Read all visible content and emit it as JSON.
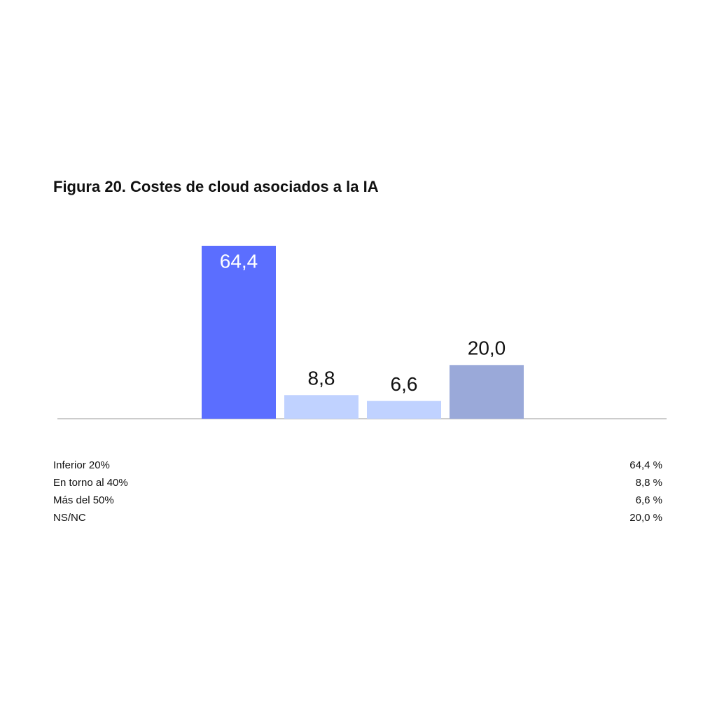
{
  "chart_data": {
    "type": "bar",
    "title": "Figura 20. Costes de cloud asociados a la IA",
    "categories": [
      "Inferior 20%",
      "En torno al 40%",
      "Más del 50%",
      "NS/NC"
    ],
    "values": [
      64.4,
      8.8,
      6.6,
      20.0
    ],
    "value_labels": [
      "64,4",
      "8,8",
      "6,6",
      "20,0"
    ],
    "table_labels": [
      "64,4 %",
      "8,8 %",
      "6,6 %",
      "20,0 %"
    ],
    "colors": [
      "#5b6eff",
      "#c0d2ff",
      "#c0d2ff",
      "#9aa9d9"
    ]
  }
}
